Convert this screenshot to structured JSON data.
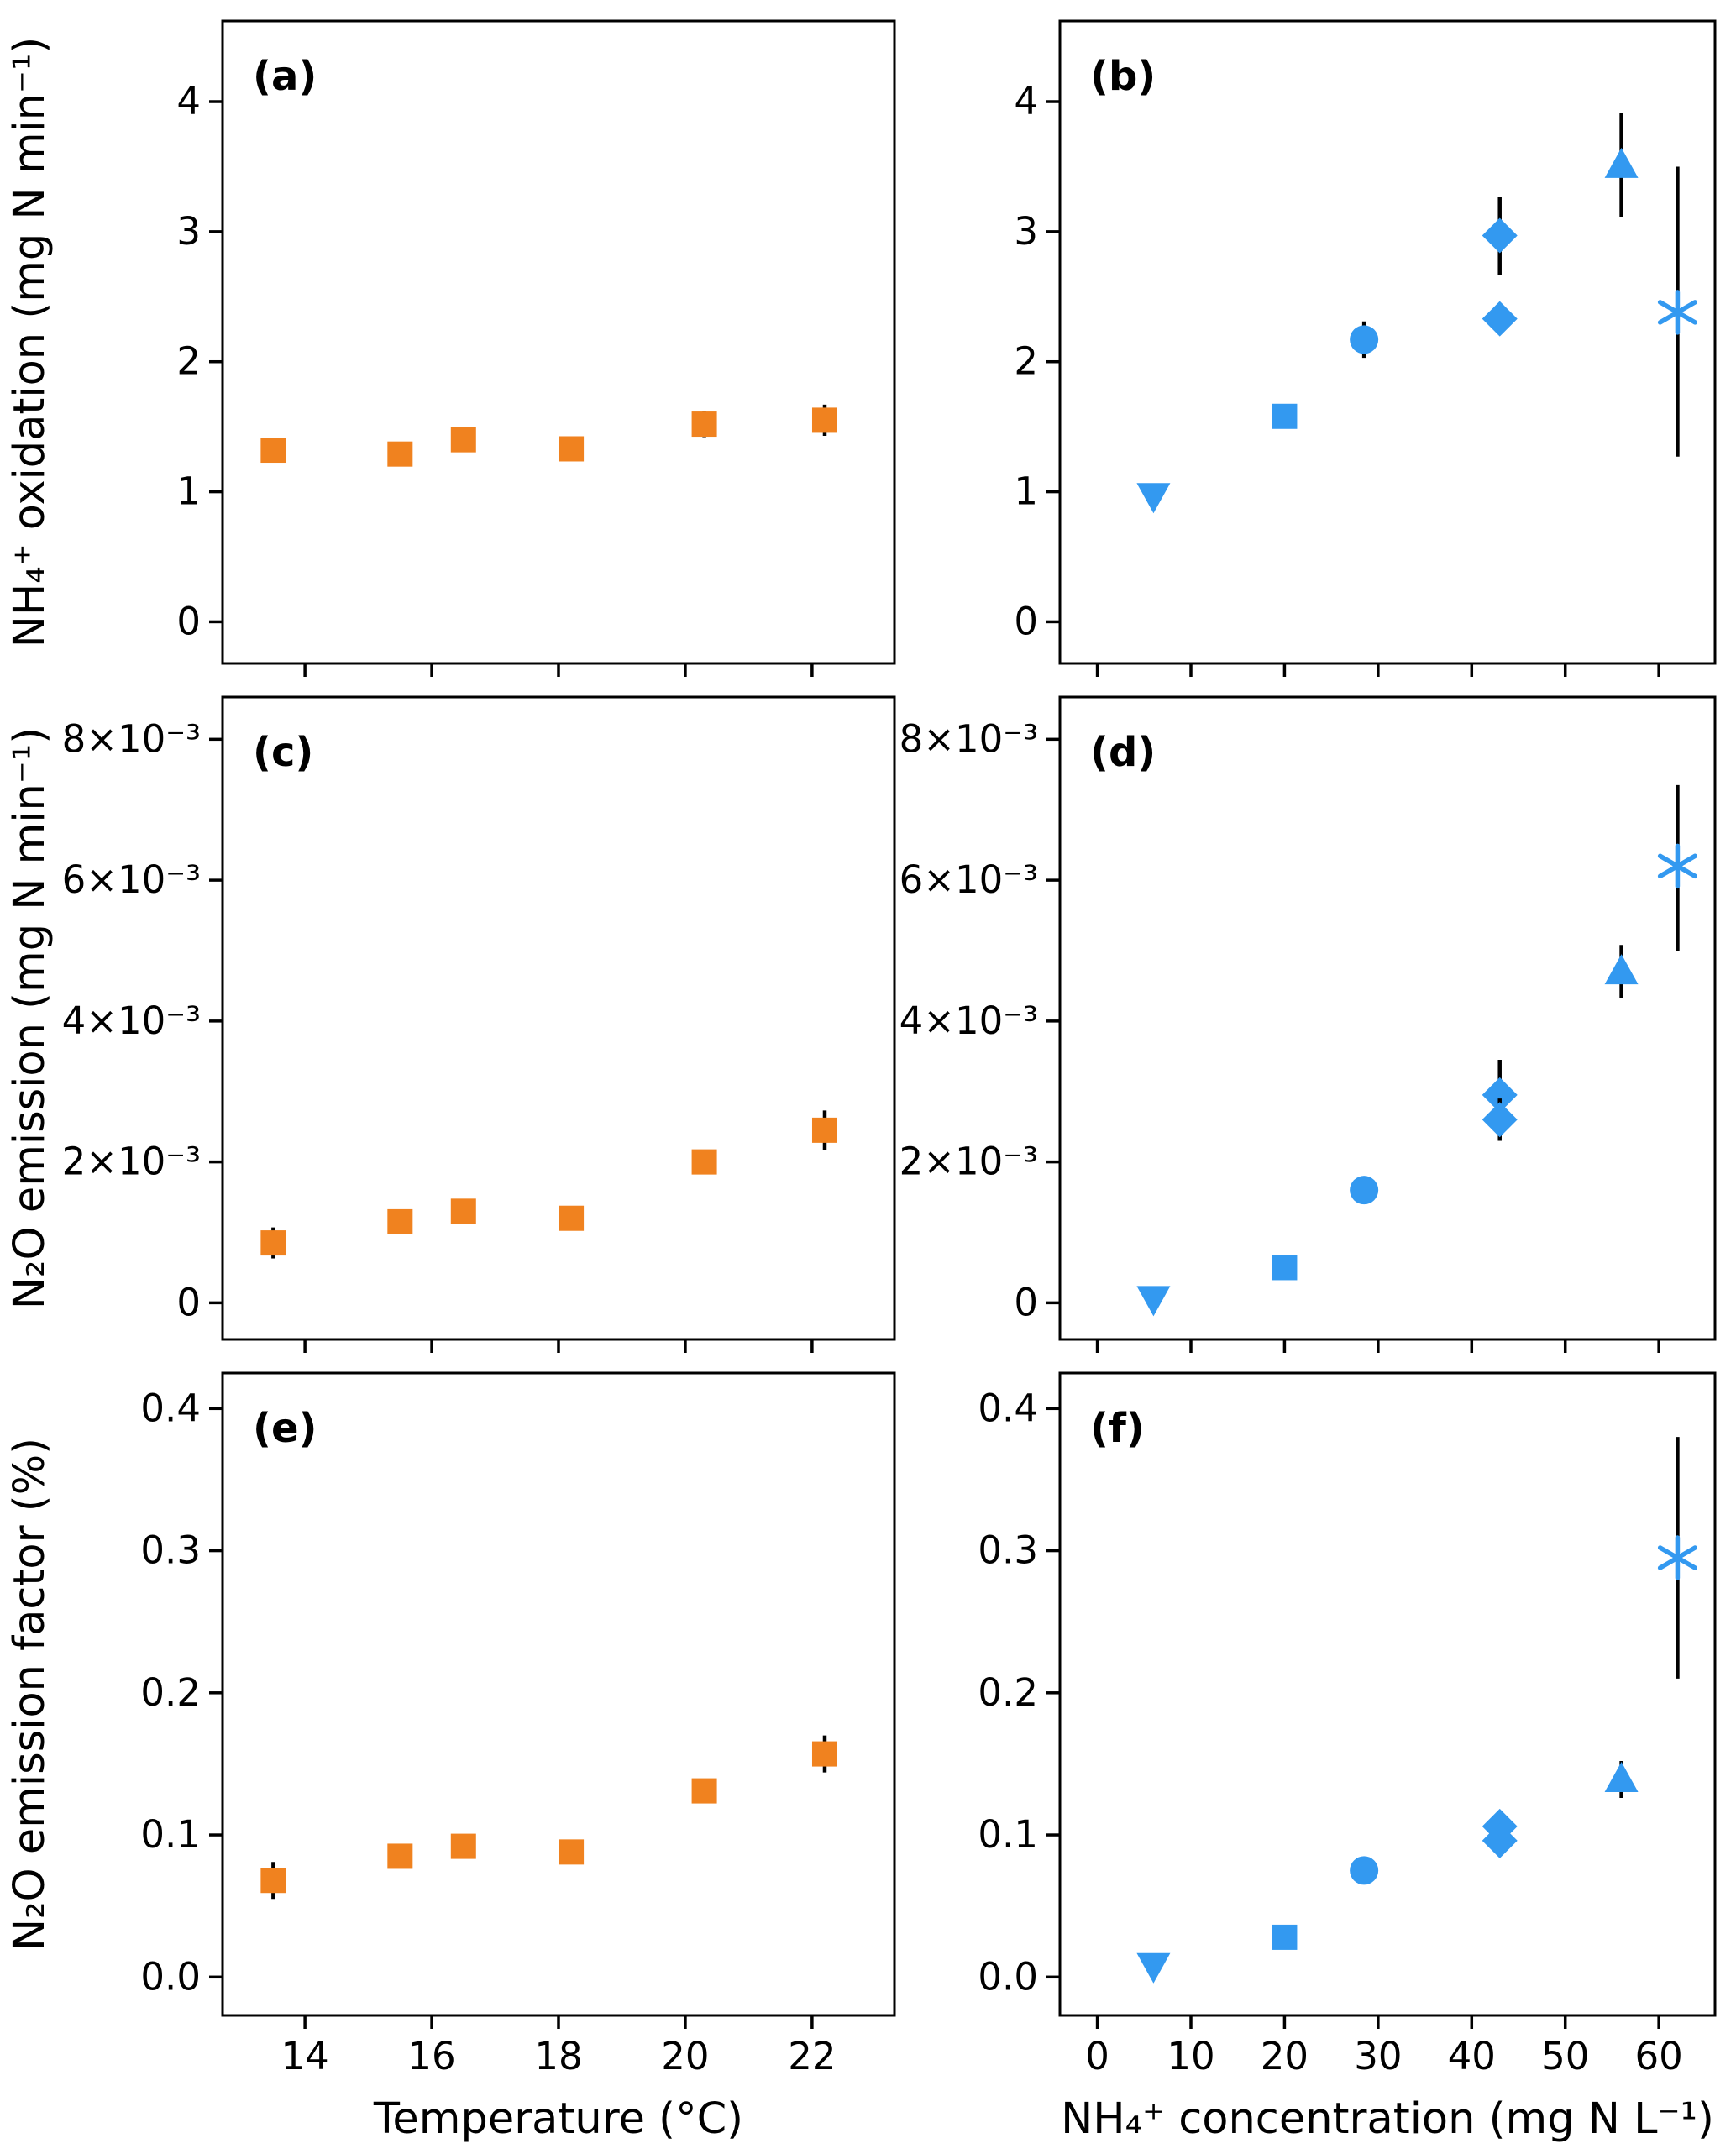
{
  "style": {
    "background": "#ffffff",
    "panel_bg": "#ffffff",
    "axis_color": "#000000",
    "error_bar_color": "#000000",
    "palette": {
      "orange": "#F0821F",
      "blue": "#3399F0"
    }
  },
  "chart_data": [
    {
      "id": "a",
      "label": "(a)",
      "type": "scatter",
      "grid": false,
      "legend": "none",
      "color": "orange",
      "marker": "square",
      "x_range": [
        12.7,
        23.3
      ],
      "y_range": [
        -0.32,
        4.62
      ],
      "x_ticks": [
        14,
        16,
        18,
        20,
        22
      ],
      "x_tick_labels": [
        "14",
        "16",
        "18",
        "20",
        "22"
      ],
      "show_x_tick_labels": false,
      "y_ticks": [
        0,
        1,
        2,
        3,
        4
      ],
      "y_tick_labels": [
        "0",
        "1",
        "2",
        "3",
        "4"
      ],
      "ylabel": "NH₄⁺ oxidation (mg N min⁻¹)",
      "xlabel": "",
      "points": [
        {
          "x": 13.5,
          "y": 1.32,
          "e": 0.08
        },
        {
          "x": 15.5,
          "y": 1.29,
          "e": 0.05
        },
        {
          "x": 16.5,
          "y": 1.4,
          "e": 0.06
        },
        {
          "x": 18.2,
          "y": 1.33,
          "e": 0.04
        },
        {
          "x": 20.3,
          "y": 1.52,
          "e": 0.1
        },
        {
          "x": 22.2,
          "y": 1.55,
          "e": 0.12
        }
      ]
    },
    {
      "id": "b",
      "label": "(b)",
      "type": "scatter",
      "grid": false,
      "legend": "none",
      "color": "blue",
      "marker": "square",
      "x_range": [
        -4,
        66
      ],
      "y_range": [
        -0.32,
        4.62
      ],
      "x_ticks": [
        0,
        10,
        20,
        30,
        40,
        50,
        60
      ],
      "x_tick_labels": [
        "0",
        "10",
        "20",
        "30",
        "40",
        "50",
        "60"
      ],
      "show_x_tick_labels": false,
      "y_ticks": [
        0,
        1,
        2,
        3,
        4
      ],
      "y_tick_labels": [
        "0",
        "1",
        "2",
        "3",
        "4"
      ],
      "ylabel": "",
      "xlabel": "",
      "points": [
        {
          "x": 6,
          "y": 0.97,
          "e": 0.05,
          "m": "triangle-down"
        },
        {
          "x": 20,
          "y": 1.58,
          "e": 0.05,
          "m": "square"
        },
        {
          "x": 28.5,
          "y": 2.17,
          "e": 0.14,
          "m": "circle"
        },
        {
          "x": 43,
          "y": 2.97,
          "e": 0.3,
          "m": "diamond"
        },
        {
          "x": 43,
          "y": 2.33,
          "e": 0.07,
          "m": "diamond"
        },
        {
          "x": 56,
          "y": 3.51,
          "e": 0.4,
          "m": "triangle-up"
        },
        {
          "x": 62,
          "y": 2.38,
          "el": 1.11,
          "eh": 1.12,
          "m": "asterisk"
        }
      ]
    },
    {
      "id": "c",
      "label": "(c)",
      "type": "scatter",
      "grid": false,
      "legend": "none",
      "color": "orange",
      "marker": "square",
      "x_range": [
        12.7,
        23.3
      ],
      "y_range": [
        -0.00052,
        0.0086
      ],
      "x_ticks": [
        14,
        16,
        18,
        20,
        22
      ],
      "x_tick_labels": [
        "14",
        "16",
        "18",
        "20",
        "22"
      ],
      "show_x_tick_labels": false,
      "y_ticks": [
        0,
        0.002,
        0.004,
        0.006,
        0.008
      ],
      "y_tick_labels": [
        "0",
        "2×10⁻³",
        "4×10⁻³",
        "6×10⁻³",
        "8×10⁻³"
      ],
      "ylabel": "N₂O emission (mg N min⁻¹)",
      "xlabel": "",
      "points": [
        {
          "x": 13.5,
          "y": 0.00085,
          "e": 0.00022
        },
        {
          "x": 15.5,
          "y": 0.00115,
          "e": 8e-05
        },
        {
          "x": 16.5,
          "y": 0.0013,
          "e": 0.0001
        },
        {
          "x": 18.2,
          "y": 0.0012,
          "e": 6e-05
        },
        {
          "x": 20.3,
          "y": 0.002,
          "e": 5e-05
        },
        {
          "x": 22.2,
          "y": 0.00245,
          "e": 0.00028
        }
      ]
    },
    {
      "id": "d",
      "label": "(d)",
      "type": "scatter",
      "grid": false,
      "legend": "none",
      "color": "blue",
      "marker": "square",
      "x_range": [
        -4,
        66
      ],
      "y_range": [
        -0.00052,
        0.0086
      ],
      "x_ticks": [
        0,
        10,
        20,
        30,
        40,
        50,
        60
      ],
      "x_tick_labels": [
        "0",
        "10",
        "20",
        "30",
        "40",
        "50",
        "60"
      ],
      "show_x_tick_labels": false,
      "y_ticks": [
        0,
        0.002,
        0.004,
        0.006,
        0.008
      ],
      "y_tick_labels": [
        "0",
        "2×10⁻³",
        "4×10⁻³",
        "6×10⁻³",
        "8×10⁻³"
      ],
      "ylabel": "",
      "xlabel": "",
      "points": [
        {
          "x": 6,
          "y": 6e-05,
          "e": 4e-05,
          "m": "triangle-down"
        },
        {
          "x": 20,
          "y": 0.0005,
          "e": 4e-05,
          "m": "square"
        },
        {
          "x": 28.5,
          "y": 0.0016,
          "e": 6e-05,
          "m": "circle"
        },
        {
          "x": 43,
          "y": 0.00295,
          "e": 0.0005,
          "m": "diamond"
        },
        {
          "x": 43,
          "y": 0.0026,
          "e": 0.0003,
          "m": "diamond"
        },
        {
          "x": 56,
          "y": 0.0047,
          "e": 0.00038,
          "m": "triangle-up"
        },
        {
          "x": 62,
          "y": 0.0062,
          "el": 0.0012,
          "eh": 0.00115,
          "m": "asterisk"
        }
      ]
    },
    {
      "id": "e",
      "label": "(e)",
      "type": "scatter",
      "grid": false,
      "legend": "none",
      "color": "orange",
      "marker": "square",
      "x_range": [
        12.7,
        23.3
      ],
      "y_range": [
        -0.027,
        0.425
      ],
      "x_ticks": [
        14,
        16,
        18,
        20,
        22
      ],
      "x_tick_labels": [
        "14",
        "16",
        "18",
        "20",
        "22"
      ],
      "show_x_tick_labels": true,
      "y_ticks": [
        0,
        0.1,
        0.2,
        0.3,
        0.4
      ],
      "y_tick_labels": [
        "0.0",
        "0.1",
        "0.2",
        "0.3",
        "0.4"
      ],
      "ylabel": "N₂O emission factor (%)",
      "xlabel": "Temperature (°C)",
      "points": [
        {
          "x": 13.5,
          "y": 0.068,
          "e": 0.013
        },
        {
          "x": 15.5,
          "y": 0.085,
          "e": 0.005
        },
        {
          "x": 16.5,
          "y": 0.092,
          "e": 0.008
        },
        {
          "x": 18.2,
          "y": 0.088,
          "e": 0.004
        },
        {
          "x": 20.3,
          "y": 0.131,
          "e": 0.004
        },
        {
          "x": 22.2,
          "y": 0.157,
          "e": 0.013
        }
      ]
    },
    {
      "id": "f",
      "label": "(f)",
      "type": "scatter",
      "grid": false,
      "legend": "none",
      "color": "blue",
      "marker": "square",
      "x_range": [
        -4,
        66
      ],
      "y_range": [
        -0.027,
        0.425
      ],
      "x_ticks": [
        0,
        10,
        20,
        30,
        40,
        50,
        60
      ],
      "x_tick_labels": [
        "0",
        "10",
        "20",
        "30",
        "40",
        "50",
        "60"
      ],
      "show_x_tick_labels": true,
      "y_ticks": [
        0,
        0.1,
        0.2,
        0.3,
        0.4
      ],
      "y_tick_labels": [
        "0.0",
        "0.1",
        "0.2",
        "0.3",
        "0.4"
      ],
      "ylabel": "",
      "xlabel": "NH₄⁺ concentration (mg N L⁻¹)",
      "points": [
        {
          "x": 6,
          "y": 0.008,
          "e": 0.004,
          "m": "triangle-down"
        },
        {
          "x": 20,
          "y": 0.028,
          "e": 0.007,
          "m": "square"
        },
        {
          "x": 28.5,
          "y": 0.075,
          "e": 0.005,
          "m": "circle"
        },
        {
          "x": 43,
          "y": 0.106,
          "e": 0.007,
          "m": "diamond"
        },
        {
          "x": 43,
          "y": 0.096,
          "e": 0.005,
          "m": "diamond"
        },
        {
          "x": 56,
          "y": 0.139,
          "e": 0.013,
          "m": "triangle-up"
        },
        {
          "x": 62,
          "y": 0.295,
          "el": 0.085,
          "eh": 0.085,
          "m": "asterisk"
        }
      ]
    }
  ]
}
